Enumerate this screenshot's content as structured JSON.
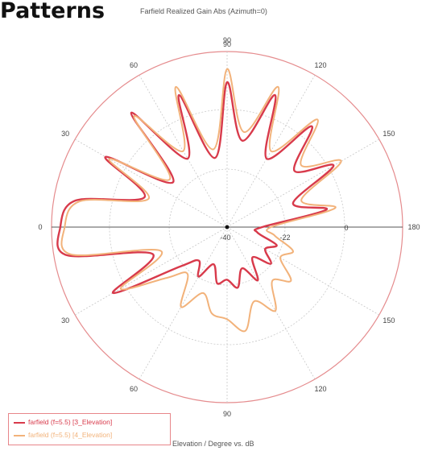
{
  "heading": "Patterns",
  "chart_data": {
    "type": "polar-line",
    "title": "Farfield Realized Gain Abs (Azimuth=0)",
    "xlabel": "Elevation / Degree vs. dB",
    "angle_labels": [
      "0",
      "30",
      "60",
      "90",
      "120",
      "150",
      "180",
      "150",
      "120",
      "90",
      "60",
      "30"
    ],
    "radial_labels": [
      "-40",
      "-22",
      "0"
    ],
    "r_range": [
      -40,
      0
    ],
    "grid": true,
    "legend_position": "bottom-left",
    "colors": {
      "series1": "#d83a4b",
      "series2": "#f2b27a",
      "grid_outer": "#e58c8e",
      "grid_inner": "#c9c9c9"
    },
    "series": [
      {
        "name": "farfield (f=5.5) [3_Elevation]",
        "angles_deg": [
          180,
          190,
          200,
          210,
          220,
          230,
          240,
          250,
          260,
          270,
          280,
          290,
          300,
          310,
          320,
          330,
          340,
          350,
          0,
          10,
          20,
          30,
          40,
          50,
          60,
          70,
          80,
          90,
          100,
          110,
          120,
          130,
          140,
          150,
          160,
          170
        ],
        "values_db": [
          -2,
          -5,
          -20,
          -8,
          -24,
          -6,
          -22,
          -8,
          -24,
          -7,
          -20,
          -8,
          -22,
          -10,
          -20,
          -12,
          -24,
          -17,
          -32,
          -33,
          -28,
          -30,
          -27,
          -31,
          -26,
          -30,
          -26,
          -28,
          -27,
          -31,
          -27,
          -30,
          -26,
          -10,
          -22,
          -3
        ]
      },
      {
        "name": "farfield (f=5.5) [4_Elevation]",
        "angles_deg": [
          180,
          190,
          200,
          210,
          220,
          230,
          240,
          250,
          260,
          270,
          280,
          290,
          300,
          310,
          320,
          330,
          340,
          350,
          0,
          10,
          20,
          30,
          40,
          50,
          60,
          70,
          80,
          90,
          100,
          110,
          120,
          130,
          140,
          150,
          160,
          170
        ],
        "values_db": [
          -3,
          -6,
          -21,
          -9,
          -23,
          -7,
          -20,
          -6,
          -22,
          -4,
          -18,
          -6,
          -20,
          -8,
          -18,
          -10,
          -22,
          -15,
          -30,
          -29,
          -24,
          -26,
          -21,
          -24,
          -18,
          -22,
          -16,
          -19,
          -20,
          -24,
          -19,
          -26,
          -22,
          -12,
          -24,
          -4
        ]
      }
    ]
  }
}
